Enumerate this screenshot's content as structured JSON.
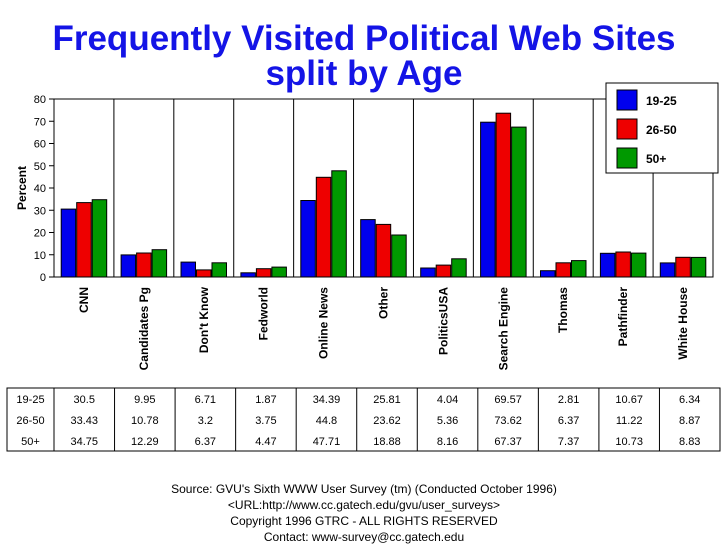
{
  "chart_data": {
    "type": "bar",
    "title_line1": "Frequently Visited Political Web Sites",
    "title_line2": "split by Age",
    "ylabel": "Percent",
    "ylim": [
      0,
      80
    ],
    "yticks": [
      0,
      10,
      20,
      30,
      40,
      50,
      60,
      70,
      80
    ],
    "categories": [
      "CNN",
      "Candidates Pg",
      "Don't Know",
      "Fedworld",
      "Online News",
      "Other",
      "PoliticsUSA",
      "Search Engine",
      "Thomas",
      "Pathfinder",
      "White House"
    ],
    "series": [
      {
        "name": "19-25",
        "color": "#0000ee",
        "values": [
          30.5,
          9.95,
          6.71,
          1.87,
          34.39,
          25.81,
          4.04,
          69.57,
          2.81,
          10.67,
          6.34
        ]
      },
      {
        "name": "26-50",
        "color": "#ee0000",
        "values": [
          33.43,
          10.78,
          3.2,
          3.75,
          44.8,
          23.62,
          5.36,
          73.62,
          6.37,
          11.22,
          8.87
        ]
      },
      {
        "name": "50+",
        "color": "#009900",
        "values": [
          34.75,
          12.29,
          6.37,
          4.47,
          47.71,
          18.88,
          8.16,
          67.37,
          7.37,
          10.73,
          8.83
        ]
      }
    ],
    "legend_position": "top-right",
    "grid": false,
    "table": {
      "rows": [
        {
          "label": "19-25",
          "values": [
            "30.5",
            "9.95",
            "6.71",
            "1.87",
            "34.39",
            "25.81",
            "4.04",
            "69.57",
            "2.81",
            "10.67",
            "6.34"
          ]
        },
        {
          "label": "26-50",
          "values": [
            "33.43",
            "10.78",
            "3.2",
            "3.75",
            "44.8",
            "23.62",
            "5.36",
            "73.62",
            "6.37",
            "11.22",
            "8.87"
          ]
        },
        {
          "label": "50+",
          "values": [
            "34.75",
            "12.29",
            "6.37",
            "4.47",
            "47.71",
            "18.88",
            "8.16",
            "67.37",
            "7.37",
            "10.73",
            "8.83"
          ]
        }
      ]
    }
  },
  "footer": {
    "line1": "Source: GVU's Sixth WWW User Survey (tm) (Conducted October 1996)",
    "line2": "<URL:http://www.cc.gatech.edu/gvu/user_surveys>",
    "line3": "Copyright 1996 GTRC - ALL RIGHTS RESERVED",
    "line4": "Contact: www-survey@cc.gatech.edu"
  }
}
